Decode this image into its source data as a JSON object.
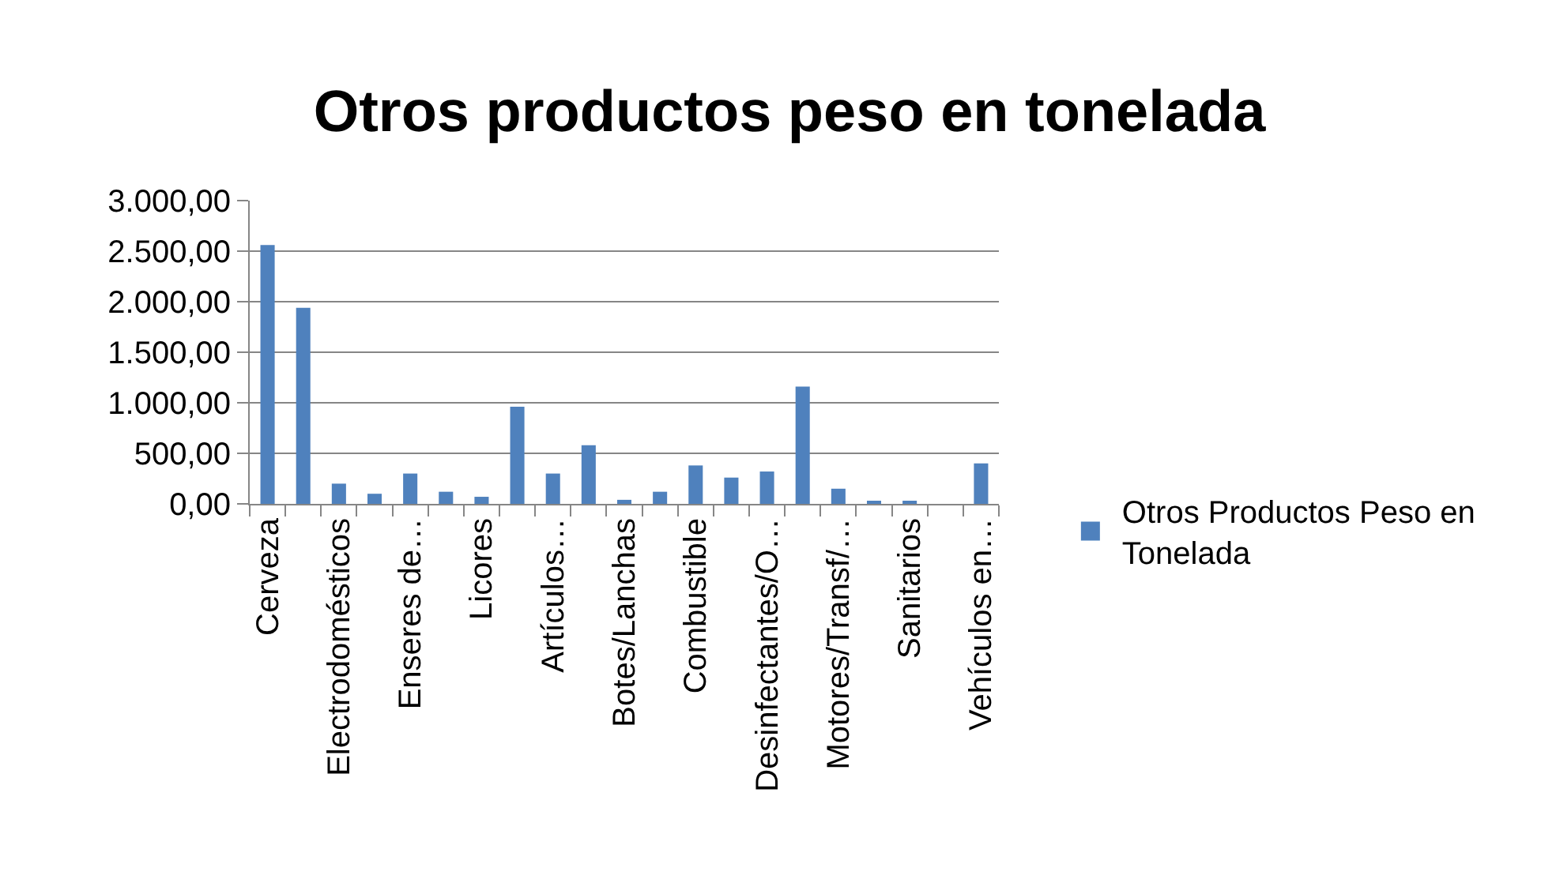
{
  "chart_data": {
    "type": "bar",
    "title": "Otros productos peso en tonelada",
    "categories": [
      "Cerveza",
      null,
      "Electrodomésticos",
      null,
      "Enseres de…",
      null,
      "Licores",
      null,
      "Artículos…",
      null,
      "Botes/Lanchas",
      null,
      "Combustible",
      null,
      "Desinfectantes/O…",
      null,
      "Motores/Transf/…",
      null,
      "Sanitarios",
      null,
      "Vehículos en…"
    ],
    "series": [
      {
        "name": "Otros Productos Peso en Tonelada",
        "color": "#4f81bd",
        "values": [
          2560,
          1940,
          200,
          100,
          300,
          120,
          70,
          960,
          300,
          580,
          40,
          120,
          380,
          260,
          320,
          1160,
          150,
          20,
          20,
          0,
          400
        ]
      }
    ],
    "ylim": [
      0,
      3000
    ],
    "yticks": [
      {
        "value": 0,
        "label": "0,00"
      },
      {
        "value": 500,
        "label": "500,00"
      },
      {
        "value": 1000,
        "label": "1.000,00"
      },
      {
        "value": 1500,
        "label": "1.500,00"
      },
      {
        "value": 2000,
        "label": "2.000,00"
      },
      {
        "value": 2500,
        "label": "2.500,00"
      },
      {
        "value": 3000,
        "label": "3.000,00"
      }
    ],
    "grid": "y",
    "legend": "right"
  }
}
